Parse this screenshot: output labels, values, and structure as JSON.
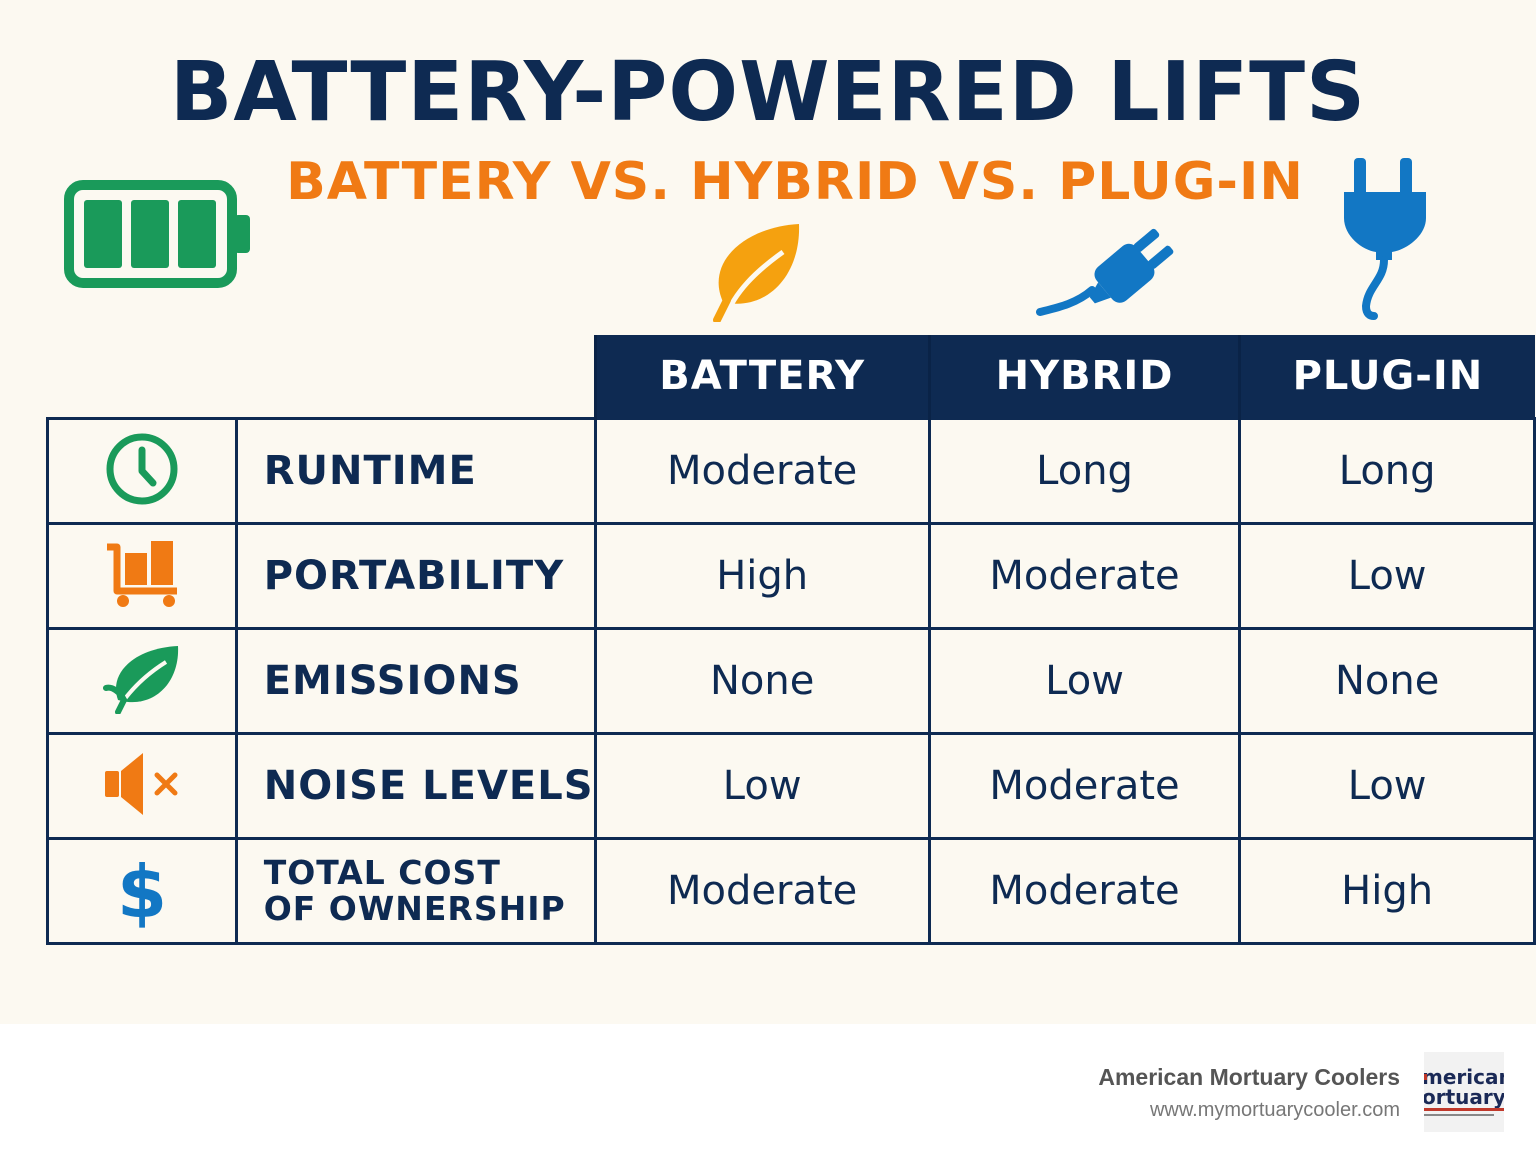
{
  "title": "BATTERY-POWERED LIFTS",
  "subtitle": "BATTERY VS. HYBRID VS. PLUG-IN",
  "colors": {
    "navy": "#0e2a52",
    "orange": "#f07a14",
    "green": "#1a9a5a",
    "blue": "#1277c4",
    "background": "#fcf9f1"
  },
  "header_icons": [
    "battery-icon",
    "leaf-icon",
    "plug-icon",
    "plug-vertical-icon"
  ],
  "table": {
    "columns": [
      "BATTERY",
      "HYBRID",
      "PLUG-IN"
    ],
    "rows": [
      {
        "icon": "clock-icon",
        "label": "RUNTIME",
        "values": [
          "Moderate",
          "Long",
          "Long"
        ]
      },
      {
        "icon": "cart-icon",
        "label": "PORTABILITY",
        "values": [
          "High",
          "Moderate",
          "Low"
        ]
      },
      {
        "icon": "leaf-icon",
        "label": "EMISSIONS",
        "values": [
          "None",
          "Low",
          "None"
        ]
      },
      {
        "icon": "speaker-mute-icon",
        "label": "NOISE LEVELS",
        "values": [
          "Low",
          "Moderate",
          "Low"
        ]
      },
      {
        "icon": "dollar-icon",
        "label_line1": "TOTAL COST",
        "label_line2": "OF OWNERSHIP",
        "values": [
          "Moderate",
          "Moderate",
          "High"
        ]
      }
    ]
  },
  "footer": {
    "company": "American Mortuary Coolers",
    "url": "www.mymortuarycooler.com",
    "logo_text": {
      "line1": "merican",
      "line2": "ortuary"
    }
  }
}
